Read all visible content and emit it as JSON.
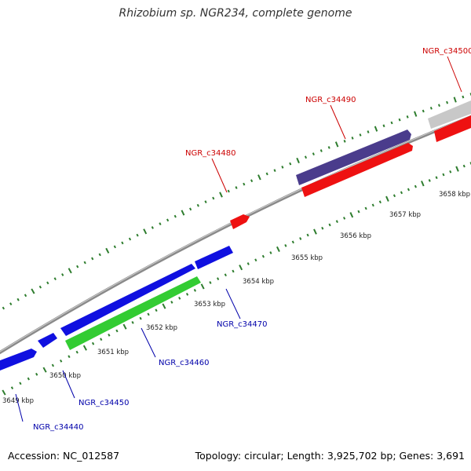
{
  "title": "Rhizobium sp. NGR234, complete genome",
  "footer": {
    "accession": "Accession: NC_012587",
    "summary": "Topology: circular; Length: 3,925,702 bp; Genes: 3,691"
  },
  "colors": {
    "backbone": "#8a8a8a",
    "tick": "#2e7d2e",
    "ruler_text": "#222222",
    "forward_label": "#cc0000",
    "reverse_label": "#0000aa",
    "blue": "#1010e0",
    "green": "#33cc33",
    "red": "#ee1111",
    "purple": "#4a3c8c",
    "grey": "#c8c8c8"
  },
  "ruler_labels": [
    "3649 kbp",
    "3650 kbp",
    "3651 kbp",
    "3652 kbp",
    "3653 kbp",
    "3654 kbp",
    "3655 kbp",
    "3656 kbp",
    "3657 kbp",
    "3658 kbp"
  ],
  "genes": [
    {
      "label": "NGR_c34440",
      "strand": "reverse",
      "color": "blue"
    },
    {
      "label": "NGR_c34450",
      "strand": "reverse",
      "color": "blue"
    },
    {
      "label": "NGR_c34460",
      "strand": "reverse",
      "color": "green"
    },
    {
      "label": "NGR_c34470",
      "strand": "reverse",
      "color": "blue"
    },
    {
      "label": "NGR_c34480",
      "strand": "forward",
      "color": "red"
    },
    {
      "label": "NGR_c34490",
      "strand": "forward",
      "color": "purple"
    },
    {
      "label": "NGR_c34500",
      "strand": "forward",
      "color": "grey"
    }
  ]
}
